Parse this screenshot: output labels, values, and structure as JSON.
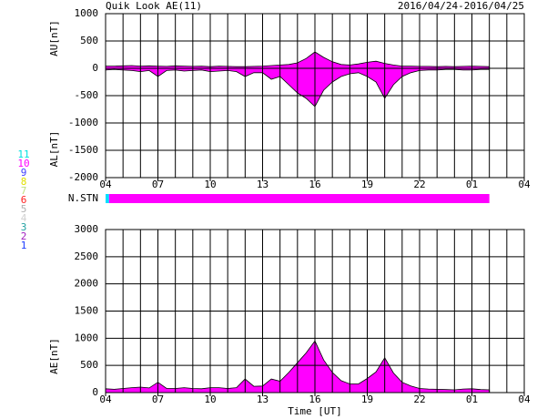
{
  "header": {
    "title": "Quik Look AE(11)",
    "date": "2016/04/24-2016/04/25"
  },
  "chart_data": [
    {
      "type": "area",
      "ylabels": [
        "AU[nT]",
        "AL[nT]"
      ],
      "x": [
        0,
        0.5,
        1,
        1.5,
        2,
        2.5,
        3,
        3.5,
        4,
        4.5,
        5,
        5.5,
        6,
        6.5,
        7,
        7.5,
        8,
        8.5,
        9,
        9.5,
        10,
        10.5,
        11,
        11.5,
        12,
        12.5,
        13,
        13.5,
        14,
        14.5,
        15,
        15.5,
        16,
        16.5,
        17,
        17.5,
        18,
        18.5,
        19,
        19.5,
        20,
        20.5,
        21,
        21.5,
        22
      ],
      "series": [
        {
          "name": "AU",
          "color": "#ff00ff",
          "values": [
            40,
            40,
            45,
            50,
            40,
            45,
            40,
            35,
            45,
            40,
            35,
            40,
            30,
            40,
            35,
            30,
            30,
            35,
            40,
            50,
            60,
            70,
            100,
            180,
            300,
            200,
            120,
            70,
            60,
            80,
            110,
            130,
            90,
            60,
            40,
            40,
            35,
            35,
            30,
            35,
            30,
            35,
            40,
            35,
            30
          ]
        },
        {
          "name": "AL",
          "color": "#ff00ff",
          "values": [
            -30,
            -20,
            -30,
            -40,
            -60,
            -40,
            -150,
            -40,
            -30,
            -50,
            -40,
            -30,
            -60,
            -50,
            -40,
            -60,
            -150,
            -80,
            -80,
            -200,
            -150,
            -300,
            -450,
            -550,
            -700,
            -400,
            -250,
            -150,
            -100,
            -80,
            -150,
            -250,
            -550,
            -300,
            -150,
            -80,
            -40,
            -30,
            -30,
            -20,
            -20,
            -30,
            -30,
            -20,
            -20
          ]
        }
      ],
      "xlim": [
        0,
        24
      ],
      "xticks": [
        {
          "value": 0,
          "label": "04"
        },
        {
          "value": 3,
          "label": "07"
        },
        {
          "value": 6,
          "label": "10"
        },
        {
          "value": 9,
          "label": "13"
        },
        {
          "value": 12,
          "label": "16"
        },
        {
          "value": 15,
          "label": "19"
        },
        {
          "value": 18,
          "label": "22"
        },
        {
          "value": 21,
          "label": "01"
        },
        {
          "value": 24,
          "label": "04"
        }
      ],
      "minor_xgrid_step": 1,
      "ylim": [
        -2000,
        1000
      ],
      "yticks": [
        1000,
        500,
        0,
        -500,
        -1000,
        -1500,
        -2000
      ],
      "grid": true
    },
    {
      "type": "area",
      "ylabels": [
        "AE[nT]"
      ],
      "xlabel": "Time [UT]",
      "x": [
        0,
        0.5,
        1,
        1.5,
        2,
        2.5,
        3,
        3.5,
        4,
        4.5,
        5,
        5.5,
        6,
        6.5,
        7,
        7.5,
        8,
        8.5,
        9,
        9.5,
        10,
        10.5,
        11,
        11.5,
        12,
        12.5,
        13,
        13.5,
        14,
        14.5,
        15,
        15.5,
        16,
        16.5,
        17,
        17.5,
        18,
        18.5,
        19,
        19.5,
        20,
        20.5,
        21,
        21.5,
        22
      ],
      "series": [
        {
          "name": "AE",
          "color": "#ff00ff",
          "values": [
            70,
            60,
            75,
            90,
            100,
            85,
            190,
            75,
            75,
            90,
            75,
            70,
            90,
            90,
            75,
            90,
            250,
            115,
            120,
            250,
            210,
            370,
            550,
            730,
            950,
            600,
            370,
            220,
            160,
            160,
            260,
            380,
            640,
            360,
            190,
            120,
            75,
            65,
            60,
            55,
            50,
            65,
            70,
            55,
            50
          ]
        }
      ],
      "xlim": [
        0,
        24
      ],
      "xticks": [
        {
          "value": 0,
          "label": "04"
        },
        {
          "value": 3,
          "label": "07"
        },
        {
          "value": 6,
          "label": "10"
        },
        {
          "value": 9,
          "label": "13"
        },
        {
          "value": 12,
          "label": "16"
        },
        {
          "value": 15,
          "label": "19"
        },
        {
          "value": 18,
          "label": "22"
        },
        {
          "value": 21,
          "label": "01"
        },
        {
          "value": 24,
          "label": "04"
        }
      ],
      "minor_xgrid_step": 1,
      "ylim": [
        0,
        3000
      ],
      "yticks": [
        3000,
        2500,
        2000,
        1500,
        1000,
        500,
        0
      ],
      "grid": true
    }
  ],
  "n_stn": {
    "label": "N.STN",
    "segments": [
      {
        "from": 0,
        "to": 0.2,
        "color": "#00e0ff"
      },
      {
        "from": 0.2,
        "to": 22,
        "color": "#ff00ff"
      }
    ]
  },
  "stations": [
    {
      "label": "11",
      "color": "#00e0e0"
    },
    {
      "label": "10",
      "color": "#ff00ff"
    },
    {
      "label": "9",
      "color": "#4040ff"
    },
    {
      "label": "8",
      "color": "#e0e000"
    },
    {
      "label": "7",
      "color": "#c0e080"
    },
    {
      "label": "6",
      "color": "#ff2020"
    },
    {
      "label": "5",
      "color": "#b0b0b0"
    },
    {
      "label": "4",
      "color": "#d0d0d0"
    },
    {
      "label": "3",
      "color": "#20a0a0"
    },
    {
      "label": "2",
      "color": "#a020c0"
    },
    {
      "label": "1",
      "color": "#2040ff"
    }
  ]
}
